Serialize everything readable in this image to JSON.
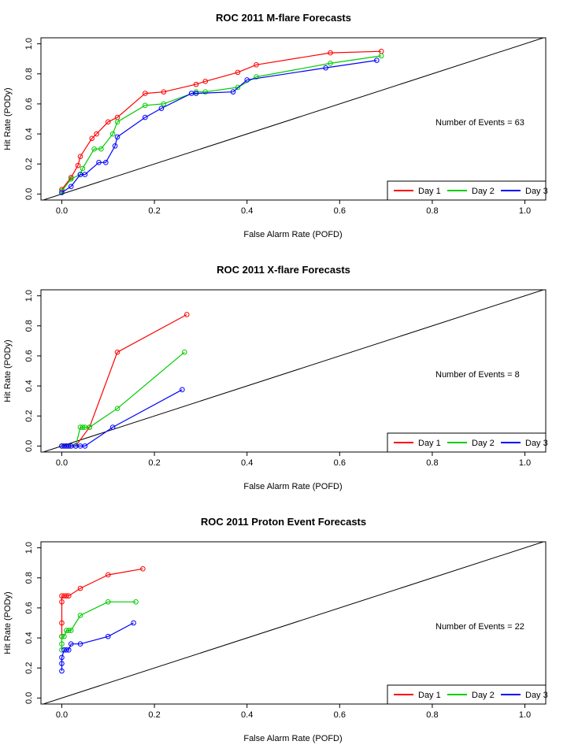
{
  "colors": {
    "Day 1": "#ff0000",
    "Day 2": "#00cc00",
    "Day 3": "#0000ff"
  },
  "chart_data": [
    {
      "type": "line",
      "title": "ROC  2011 M-flare Forecasts",
      "xlabel": "False Alarm Rate (POFD)",
      "ylabel": "Hit Rate (PODy)",
      "xlim": [
        0,
        1
      ],
      "ylim": [
        0,
        1
      ],
      "x_ticks": [
        "0.0",
        "0.2",
        "0.4",
        "0.6",
        "0.8",
        "1.0"
      ],
      "y_ticks": [
        "0.0",
        "0.2",
        "0.4",
        "0.6",
        "0.8",
        "1.0"
      ],
      "annotation": "Number of Events =  63",
      "legend_position": "bottom-right",
      "series": [
        {
          "name": "Day 1",
          "x": [
            0.0,
            0.02,
            0.035,
            0.04,
            0.065,
            0.075,
            0.1,
            0.12,
            0.18,
            0.22,
            0.29,
            0.31,
            0.38,
            0.42,
            0.58,
            0.69
          ],
          "y": [
            0.03,
            0.11,
            0.19,
            0.25,
            0.37,
            0.4,
            0.48,
            0.51,
            0.67,
            0.68,
            0.73,
            0.75,
            0.81,
            0.86,
            0.94,
            0.95
          ]
        },
        {
          "name": "Day 2",
          "x": [
            0.0,
            0.02,
            0.04,
            0.045,
            0.07,
            0.085,
            0.11,
            0.12,
            0.18,
            0.22,
            0.29,
            0.31,
            0.38,
            0.42,
            0.58,
            0.69
          ],
          "y": [
            0.02,
            0.1,
            0.13,
            0.17,
            0.3,
            0.3,
            0.4,
            0.48,
            0.59,
            0.6,
            0.68,
            0.68,
            0.71,
            0.78,
            0.87,
            0.92
          ]
        },
        {
          "name": "Day 3",
          "x": [
            0.0,
            0.02,
            0.04,
            0.05,
            0.08,
            0.095,
            0.115,
            0.12,
            0.18,
            0.215,
            0.28,
            0.29,
            0.37,
            0.4,
            0.57,
            0.68
          ],
          "y": [
            0.01,
            0.05,
            0.13,
            0.13,
            0.21,
            0.21,
            0.32,
            0.38,
            0.51,
            0.57,
            0.67,
            0.67,
            0.68,
            0.76,
            0.84,
            0.89
          ]
        }
      ]
    },
    {
      "type": "line",
      "title": "ROC  2011 X-flare Forecasts",
      "xlabel": "False Alarm Rate (POFD)",
      "ylabel": "Hit Rate (PODy)",
      "xlim": [
        0,
        1
      ],
      "ylim": [
        0,
        1
      ],
      "x_ticks": [
        "0.0",
        "0.2",
        "0.4",
        "0.6",
        "0.8",
        "1.0"
      ],
      "y_ticks": [
        "0.0",
        "0.2",
        "0.4",
        "0.6",
        "0.8",
        "1.0"
      ],
      "annotation": "Number of Events =  8",
      "legend_position": "bottom-right",
      "series": [
        {
          "name": "Day 1",
          "x": [
            0.0,
            0.005,
            0.01,
            0.015,
            0.02,
            0.03,
            0.06,
            0.12,
            0.27
          ],
          "y": [
            0.0,
            0.0,
            0.0,
            0.0,
            0.0,
            0.0,
            0.125,
            0.625,
            0.875
          ]
        },
        {
          "name": "Day 2",
          "x": [
            0.0,
            0.01,
            0.02,
            0.03,
            0.04,
            0.045,
            0.05,
            0.06,
            0.12,
            0.265
          ],
          "y": [
            0.0,
            0.0,
            0.0,
            0.0,
            0.125,
            0.125,
            0.125,
            0.125,
            0.25,
            0.625
          ]
        },
        {
          "name": "Day 3",
          "x": [
            0.0,
            0.005,
            0.01,
            0.015,
            0.02,
            0.03,
            0.04,
            0.05,
            0.11,
            0.26
          ],
          "y": [
            0.0,
            0.0,
            0.0,
            0.0,
            0.0,
            0.0,
            0.0,
            0.0,
            0.125,
            0.375
          ]
        }
      ]
    },
    {
      "type": "line",
      "title": "ROC  2011 Proton Event Forecasts",
      "xlabel": "False Alarm Rate (POFD)",
      "ylabel": "Hit Rate (PODy)",
      "xlim": [
        0,
        1
      ],
      "ylim": [
        0,
        1
      ],
      "x_ticks": [
        "0.0",
        "0.2",
        "0.4",
        "0.6",
        "0.8",
        "1.0"
      ],
      "y_ticks": [
        "0.0",
        "0.2",
        "0.4",
        "0.6",
        "0.8",
        "1.0"
      ],
      "annotation": "Number of Events =  22",
      "legend_position": "bottom-right",
      "series": [
        {
          "name": "Day 1",
          "x": [
            0.0,
            0.0,
            0.0,
            0.0,
            0.005,
            0.01,
            0.015,
            0.04,
            0.1,
            0.175
          ],
          "y": [
            0.41,
            0.5,
            0.64,
            0.68,
            0.68,
            0.68,
            0.68,
            0.73,
            0.82,
            0.86
          ]
        },
        {
          "name": "Day 2",
          "x": [
            0.0,
            0.0,
            0.0,
            0.005,
            0.01,
            0.015,
            0.02,
            0.04,
            0.1,
            0.16
          ],
          "y": [
            0.32,
            0.36,
            0.41,
            0.41,
            0.45,
            0.45,
            0.45,
            0.55,
            0.64,
            0.64
          ]
        },
        {
          "name": "Day 3",
          "x": [
            0.0,
            0.0,
            0.0,
            0.005,
            0.01,
            0.015,
            0.02,
            0.04,
            0.1,
            0.155
          ],
          "y": [
            0.18,
            0.23,
            0.27,
            0.32,
            0.32,
            0.32,
            0.36,
            0.36,
            0.41,
            0.5
          ]
        }
      ]
    }
  ]
}
